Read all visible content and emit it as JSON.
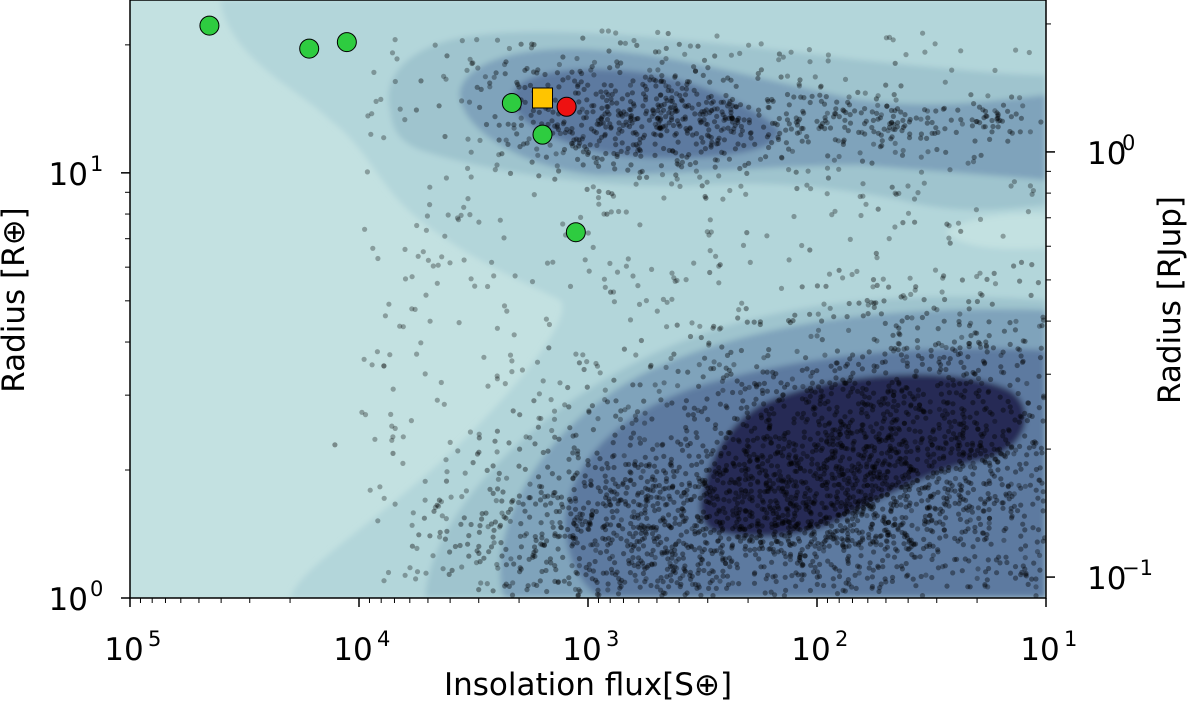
{
  "chart_data": {
    "type": "scatter",
    "xlabel": "Insolation flux[S⊕]",
    "ylabel_left": "Radius [R⊕]",
    "ylabel_right": "Radius [RJup]",
    "x_scale": "log",
    "x_inverted": true,
    "xlim": [
      100000,
      10
    ],
    "y_scale": "log",
    "ylim": [
      1,
      25.5
    ],
    "x_ticks": [
      {
        "value": 100000,
        "base": "10",
        "exp": "5"
      },
      {
        "value": 10000,
        "base": "10",
        "exp": "4"
      },
      {
        "value": 1000,
        "base": "10",
        "exp": "3"
      },
      {
        "value": 100,
        "base": "10",
        "exp": "2"
      },
      {
        "value": 10,
        "base": "10",
        "exp": "1"
      }
    ],
    "y_ticks_left": [
      {
        "value": 1,
        "base": "10",
        "exp": "0"
      },
      {
        "value": 10,
        "base": "10",
        "exp": "1"
      }
    ],
    "y_ticks_right": [
      {
        "value": 0.1,
        "base": "10",
        "exp": "−1"
      },
      {
        "value": 1,
        "base": "10",
        "exp": "0"
      }
    ],
    "background_color": "#c3e1e1",
    "contour_colors": [
      "#b3d6da",
      "#9fc4ce",
      "#7fa3bb",
      "#5d7aa0",
      "#3e4d7c",
      "#282a55"
    ],
    "known_planets_green": [
      {
        "x": 45000,
        "y": 22.2
      },
      {
        "x": 16500,
        "y": 19.6
      },
      {
        "x": 11300,
        "y": 20.3
      },
      {
        "x": 2150,
        "y": 14.6
      },
      {
        "x": 1580,
        "y": 12.3
      },
      {
        "x": 1130,
        "y": 7.25
      }
    ],
    "target_planet_red": {
      "x": 1240,
      "y": 14.3
    },
    "target_planet_square": {
      "x": 1580,
      "y": 15.0
    },
    "colors": {
      "green": "#2ecc40",
      "red": "#ee1111",
      "square": "#ffc400",
      "scatter": "#000000"
    }
  }
}
